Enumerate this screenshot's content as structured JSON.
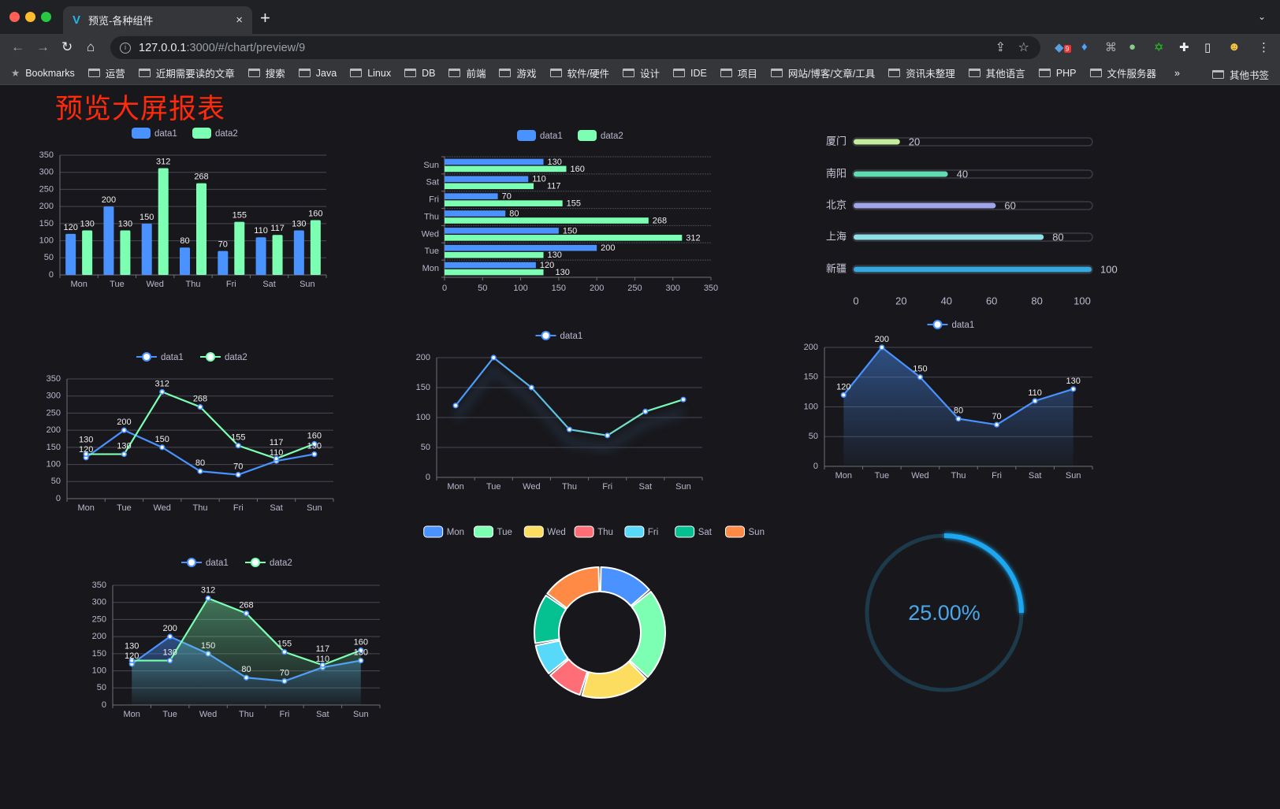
{
  "browser": {
    "tab_title": "预览-各种组件",
    "tab_close": "×",
    "new_tab": "+",
    "url_host": "127.0.0.1",
    "url_path": ":3000/#/chart/preview/9",
    "extension_badge": "9",
    "bookmarks_label": "Bookmarks",
    "bookmarks": [
      "运营",
      "近期需要读的文章",
      "搜索",
      "Java",
      "Linux",
      "DB",
      "前端",
      "游戏",
      "软件/硬件",
      "设计",
      "IDE",
      "项目",
      "网站/博客/文章/工具",
      "资讯未整理",
      "其他语言",
      "PHP",
      "文件服务器"
    ],
    "more": "»",
    "other_bookmarks": "其他书签"
  },
  "page": {
    "title": "预览大屏报表",
    "title_color": "#ff2a0a"
  },
  "colors": {
    "data1": "#4992ff",
    "data2": "#7cffb2",
    "axis_text": "#b9b8ce",
    "grid": "#484753"
  },
  "chart_data": [
    {
      "type": "bar",
      "categories": [
        "Mon",
        "Tue",
        "Wed",
        "Thu",
        "Fri",
        "Sat",
        "Sun"
      ],
      "series": [
        {
          "name": "data1",
          "values": [
            120,
            200,
            150,
            80,
            70,
            110,
            130
          ]
        },
        {
          "name": "data2",
          "values": [
            130,
            130,
            312,
            268,
            155,
            117,
            160
          ]
        }
      ],
      "yticks": [
        0,
        50,
        100,
        150,
        200,
        250,
        300,
        350
      ],
      "ylim": [
        0,
        350
      ],
      "legend": "top",
      "data_labels": true
    },
    {
      "type": "bar",
      "orientation": "horizontal",
      "categories": [
        "Mon",
        "Tue",
        "Wed",
        "Thu",
        "Fri",
        "Sat",
        "Sun"
      ],
      "series": [
        {
          "name": "data1",
          "values": [
            120,
            200,
            150,
            80,
            70,
            110,
            130
          ]
        },
        {
          "name": "data2",
          "values": [
            130,
            130,
            312,
            268,
            155,
            117,
            160
          ]
        }
      ],
      "xticks": [
        0,
        50,
        100,
        150,
        200,
        250,
        300,
        350
      ],
      "xlim": [
        0,
        350
      ],
      "legend": "top",
      "data_labels": true
    },
    {
      "type": "bar",
      "orientation": "horizontal",
      "style": "progress",
      "categories": [
        "厦门",
        "南阳",
        "北京",
        "上海",
        "新疆"
      ],
      "values": [
        20,
        40,
        60,
        80,
        100
      ],
      "xticks": [
        0,
        20,
        40,
        60,
        80,
        100
      ],
      "xlim": [
        0,
        100
      ],
      "colors": [
        "#c5eb9d",
        "#5fdcb0",
        "#9fa5e8",
        "#8fe0e6",
        "#35a8e0"
      ]
    },
    {
      "type": "line",
      "categories": [
        "Mon",
        "Tue",
        "Wed",
        "Thu",
        "Fri",
        "Sat",
        "Sun"
      ],
      "series": [
        {
          "name": "data1",
          "values": [
            120,
            200,
            150,
            80,
            70,
            110,
            130
          ]
        },
        {
          "name": "data2",
          "values": [
            130,
            130,
            312,
            268,
            155,
            117,
            160
          ]
        }
      ],
      "yticks": [
        0,
        50,
        100,
        150,
        200,
        250,
        300,
        350
      ],
      "ylim": [
        0,
        350
      ],
      "legend": "top",
      "data_labels": true
    },
    {
      "type": "line",
      "categories": [
        "Mon",
        "Tue",
        "Wed",
        "Thu",
        "Fri",
        "Sat",
        "Sun"
      ],
      "series": [
        {
          "name": "data1",
          "values": [
            120,
            200,
            150,
            80,
            70,
            110,
            130
          ]
        }
      ],
      "yticks": [
        0,
        50,
        100,
        150,
        200
      ],
      "ylim": [
        0,
        200
      ],
      "legend": "top",
      "data_labels": false,
      "line_gradient": [
        "#4992ff",
        "#7cffb2"
      ]
    },
    {
      "type": "area",
      "categories": [
        "Mon",
        "Tue",
        "Wed",
        "Thu",
        "Fri",
        "Sat",
        "Sun"
      ],
      "series": [
        {
          "name": "data1",
          "values": [
            120,
            200,
            150,
            80,
            70,
            110,
            130
          ]
        }
      ],
      "yticks": [
        0,
        50,
        100,
        150,
        200
      ],
      "ylim": [
        0,
        200
      ],
      "legend": "top",
      "data_labels": true
    },
    {
      "type": "area",
      "categories": [
        "Mon",
        "Tue",
        "Wed",
        "Thu",
        "Fri",
        "Sat",
        "Sun"
      ],
      "series": [
        {
          "name": "data1",
          "values": [
            120,
            200,
            150,
            80,
            70,
            110,
            130
          ]
        },
        {
          "name": "data2",
          "values": [
            130,
            130,
            312,
            268,
            155,
            117,
            160
          ]
        }
      ],
      "yticks": [
        0,
        50,
        100,
        150,
        200,
        250,
        300,
        350
      ],
      "ylim": [
        0,
        350
      ],
      "legend": "top",
      "data_labels": true
    },
    {
      "type": "pie",
      "style": "donut",
      "categories": [
        "Mon",
        "Tue",
        "Wed",
        "Thu",
        "Fri",
        "Sat",
        "Sun"
      ],
      "values": [
        120,
        200,
        150,
        80,
        70,
        110,
        130
      ],
      "colors": [
        "#4992ff",
        "#7cffb2",
        "#fddd60",
        "#ff6e76",
        "#58d9f9",
        "#05c091",
        "#ff8a45"
      ],
      "legend": "top"
    },
    {
      "type": "gauge",
      "value": 25,
      "label": "25.00%",
      "color": "#1ea7f0",
      "track_color": "#1d3a4a"
    }
  ]
}
